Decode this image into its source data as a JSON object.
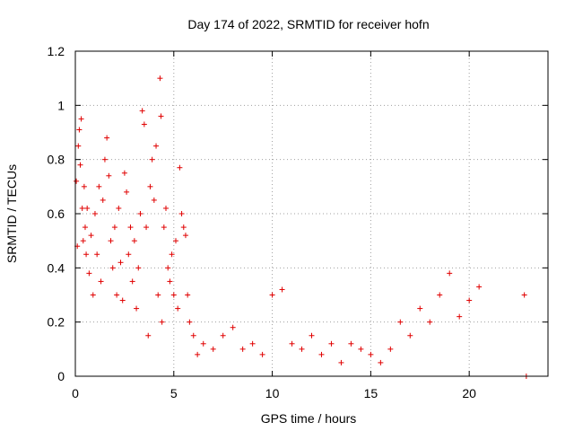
{
  "chart_data": {
    "type": "scatter",
    "title": "Day 174 of 2022, SRMTID for receiver hofn",
    "xlabel": "GPS time / hours",
    "ylabel": "SRMTID / TECUs",
    "xlim": [
      0,
      24
    ],
    "ylim": [
      0,
      1.2
    ],
    "x_ticks": [
      0,
      5,
      10,
      15,
      20
    ],
    "x_tick_labels": [
      "0",
      "5",
      "10",
      "15",
      "20"
    ],
    "y_ticks": [
      0,
      0.2,
      0.4,
      0.6,
      0.8,
      1.0,
      1.2
    ],
    "y_tick_labels": [
      "0",
      "0.2",
      "0.4",
      "0.6",
      "0.8",
      "1",
      "1.2"
    ],
    "grid": true,
    "marker": "plus",
    "color": "#e00000",
    "series": [
      {
        "name": "SRMTID",
        "points": [
          [
            0.05,
            0.72
          ],
          [
            0.1,
            0.48
          ],
          [
            0.15,
            0.85
          ],
          [
            0.2,
            0.91
          ],
          [
            0.25,
            0.78
          ],
          [
            0.3,
            0.95
          ],
          [
            0.35,
            0.62
          ],
          [
            0.4,
            0.5
          ],
          [
            0.45,
            0.7
          ],
          [
            0.5,
            0.55
          ],
          [
            0.55,
            0.45
          ],
          [
            0.6,
            0.62
          ],
          [
            0.7,
            0.38
          ],
          [
            0.8,
            0.52
          ],
          [
            0.9,
            0.3
          ],
          [
            1.0,
            0.6
          ],
          [
            1.1,
            0.45
          ],
          [
            1.2,
            0.7
          ],
          [
            1.3,
            0.35
          ],
          [
            1.4,
            0.65
          ],
          [
            1.5,
            0.8
          ],
          [
            1.6,
            0.88
          ],
          [
            1.7,
            0.74
          ],
          [
            1.8,
            0.5
          ],
          [
            1.9,
            0.4
          ],
          [
            2.0,
            0.55
          ],
          [
            2.1,
            0.3
          ],
          [
            2.2,
            0.62
          ],
          [
            2.3,
            0.42
          ],
          [
            2.4,
            0.28
          ],
          [
            2.5,
            0.75
          ],
          [
            2.6,
            0.68
          ],
          [
            2.7,
            0.45
          ],
          [
            2.8,
            0.55
          ],
          [
            2.9,
            0.35
          ],
          [
            3.0,
            0.5
          ],
          [
            3.1,
            0.25
          ],
          [
            3.2,
            0.4
          ],
          [
            3.3,
            0.6
          ],
          [
            3.4,
            0.98
          ],
          [
            3.5,
            0.93
          ],
          [
            3.6,
            0.55
          ],
          [
            3.7,
            0.15
          ],
          [
            3.8,
            0.7
          ],
          [
            3.9,
            0.8
          ],
          [
            4.0,
            0.65
          ],
          [
            4.1,
            0.85
          ],
          [
            4.2,
            0.3
          ],
          [
            4.3,
            1.1
          ],
          [
            4.35,
            0.96
          ],
          [
            4.4,
            0.2
          ],
          [
            4.5,
            0.55
          ],
          [
            4.6,
            0.62
          ],
          [
            4.7,
            0.4
          ],
          [
            4.8,
            0.35
          ],
          [
            4.9,
            0.45
          ],
          [
            5.0,
            0.3
          ],
          [
            5.1,
            0.5
          ],
          [
            5.2,
            0.25
          ],
          [
            5.3,
            0.77
          ],
          [
            5.4,
            0.6
          ],
          [
            5.5,
            0.55
          ],
          [
            5.6,
            0.52
          ],
          [
            5.7,
            0.3
          ],
          [
            5.8,
            0.2
          ],
          [
            6.0,
            0.15
          ],
          [
            6.2,
            0.08
          ],
          [
            6.5,
            0.12
          ],
          [
            7.0,
            0.1
          ],
          [
            7.5,
            0.15
          ],
          [
            8.0,
            0.18
          ],
          [
            8.5,
            0.1
          ],
          [
            9.0,
            0.12
          ],
          [
            9.5,
            0.08
          ],
          [
            10.0,
            0.3
          ],
          [
            10.5,
            0.32
          ],
          [
            11.0,
            0.12
          ],
          [
            11.5,
            0.1
          ],
          [
            12.0,
            0.15
          ],
          [
            12.5,
            0.08
          ],
          [
            13.0,
            0.12
          ],
          [
            13.5,
            0.05
          ],
          [
            14.0,
            0.12
          ],
          [
            14.5,
            0.1
          ],
          [
            15.0,
            0.08
          ],
          [
            15.5,
            0.05
          ],
          [
            16.0,
            0.1
          ],
          [
            16.5,
            0.2
          ],
          [
            17.0,
            0.15
          ],
          [
            17.5,
            0.25
          ],
          [
            18.0,
            0.2
          ],
          [
            18.5,
            0.3
          ],
          [
            19.0,
            0.38
          ],
          [
            19.5,
            0.22
          ],
          [
            20.0,
            0.28
          ],
          [
            20.5,
            0.33
          ],
          [
            22.8,
            0.3
          ],
          [
            22.9,
            0.0
          ]
        ]
      }
    ]
  }
}
